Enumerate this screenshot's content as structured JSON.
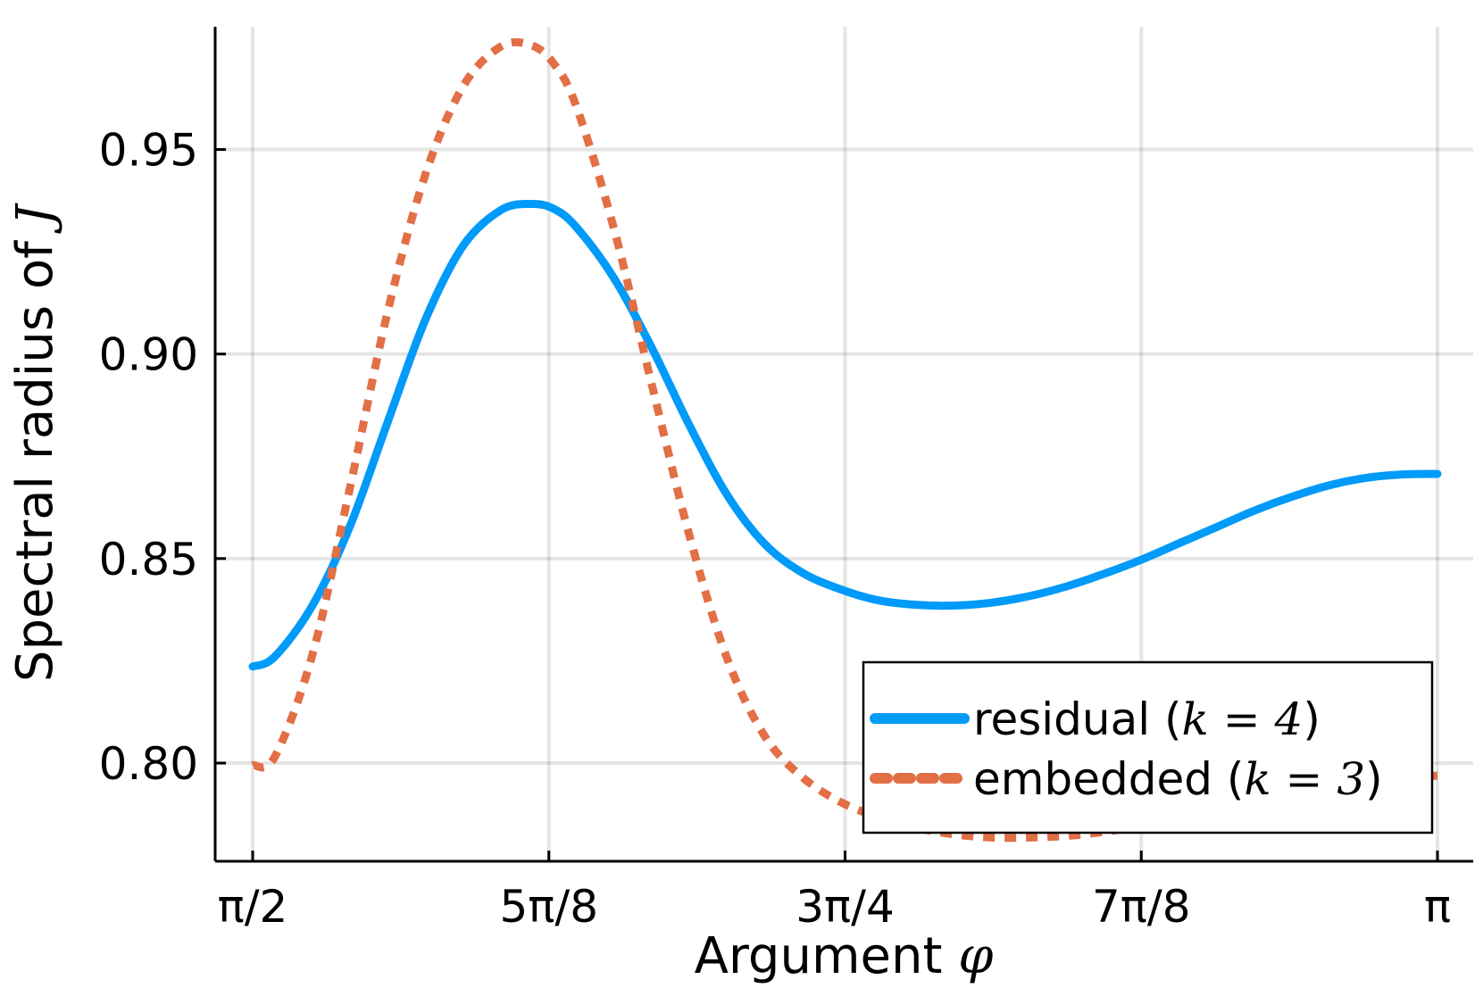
{
  "chart_data": {
    "type": "line",
    "title": "",
    "xlabel": "Argument",
    "xlabel_math": "φ",
    "ylabel": "Spectral radius of",
    "ylabel_math": "J",
    "xlim": [
      1.5708,
      3.1416
    ],
    "ylim": [
      0.776,
      0.98
    ],
    "x_ticks": [
      {
        "value": 1.5708,
        "label": "π/2"
      },
      {
        "value": 1.9635,
        "label": "5π/8"
      },
      {
        "value": 2.3562,
        "label": "3π/4"
      },
      {
        "value": 2.7489,
        "label": "7π/8"
      },
      {
        "value": 3.1416,
        "label": "π"
      }
    ],
    "y_ticks": [
      {
        "value": 0.8,
        "label": "0.80"
      },
      {
        "value": 0.85,
        "label": "0.85"
      },
      {
        "value": 0.9,
        "label": "0.90"
      },
      {
        "value": 0.95,
        "label": "0.95"
      }
    ],
    "grid": true,
    "legend_position": "bottom-right",
    "series": [
      {
        "name": "residual",
        "name_math": "k = 4",
        "color": "#009af9",
        "style": "solid",
        "x": [
          1.5708,
          1.6,
          1.65,
          1.7,
          1.75,
          1.8,
          1.85,
          1.9,
          1.94,
          1.97,
          2.0,
          2.05,
          2.1,
          2.15,
          2.2,
          2.25,
          2.3,
          2.35,
          2.4,
          2.45,
          2.5,
          2.55,
          2.6,
          2.65,
          2.7,
          2.75,
          2.8,
          2.85,
          2.9,
          2.95,
          3.0,
          3.05,
          3.1,
          3.1416
        ],
        "y": [
          0.8236,
          0.826,
          0.8385,
          0.858,
          0.8835,
          0.9085,
          0.9265,
          0.9352,
          0.9367,
          0.9355,
          0.931,
          0.9185,
          0.9015,
          0.8825,
          0.8655,
          0.8535,
          0.8465,
          0.8425,
          0.8398,
          0.8387,
          0.8385,
          0.8392,
          0.8408,
          0.8432,
          0.8463,
          0.8498,
          0.8538,
          0.8578,
          0.8618,
          0.8652,
          0.868,
          0.8698,
          0.8706,
          0.8707
        ]
      },
      {
        "name": "embedded",
        "name_math": "k = 3",
        "color": "#e26f46",
        "style": "dashed",
        "x": [
          1.5708,
          1.6,
          1.65,
          1.7,
          1.75,
          1.8,
          1.85,
          1.9,
          1.94,
          1.97,
          2.0,
          2.05,
          2.1,
          2.15,
          2.2,
          2.25,
          2.3,
          2.35,
          2.4,
          2.45,
          2.5,
          2.55,
          2.6,
          2.65,
          2.7,
          2.75,
          2.8,
          2.85,
          2.9,
          2.95,
          3.0,
          3.05,
          3.1,
          3.1416
        ],
        "y": [
          0.7995,
          0.8015,
          0.8265,
          0.8675,
          0.9105,
          0.944,
          0.9655,
          0.9752,
          0.9755,
          0.971,
          0.9605,
          0.9305,
          0.8925,
          0.8555,
          0.8255,
          0.8065,
          0.7965,
          0.7905,
          0.7868,
          0.7842,
          0.7826,
          0.7818,
          0.7818,
          0.7822,
          0.7832,
          0.7847,
          0.7866,
          0.7888,
          0.7911,
          0.7933,
          0.7951,
          0.7963,
          0.7968,
          0.7969
        ]
      }
    ]
  }
}
